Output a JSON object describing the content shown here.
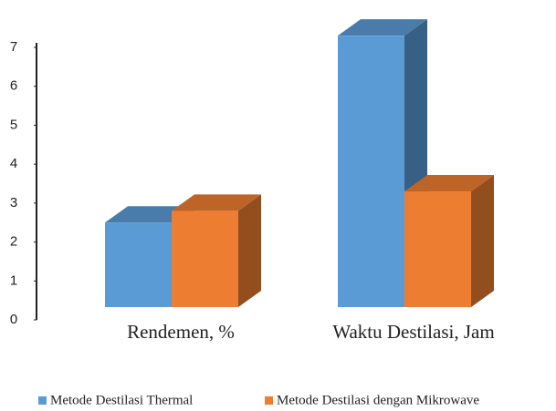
{
  "chart_data": {
    "type": "bar3d",
    "categories": [
      "Rendemen, %",
      "Waktu Destilasi, Jam"
    ],
    "series": [
      {
        "name": "Metode Destilasi Thermal",
        "color": "#5b9bd5",
        "values": [
          2.5,
          7.3
        ]
      },
      {
        "name": "Metode Destilasi dengan Mikrowave",
        "color": "#ed7d31",
        "values": [
          2.8,
          3.3
        ]
      }
    ],
    "ylim": [
      0,
      7
    ],
    "yticks": [
      0,
      1,
      2,
      3,
      4,
      5,
      6,
      7
    ],
    "legend": "bottom"
  }
}
